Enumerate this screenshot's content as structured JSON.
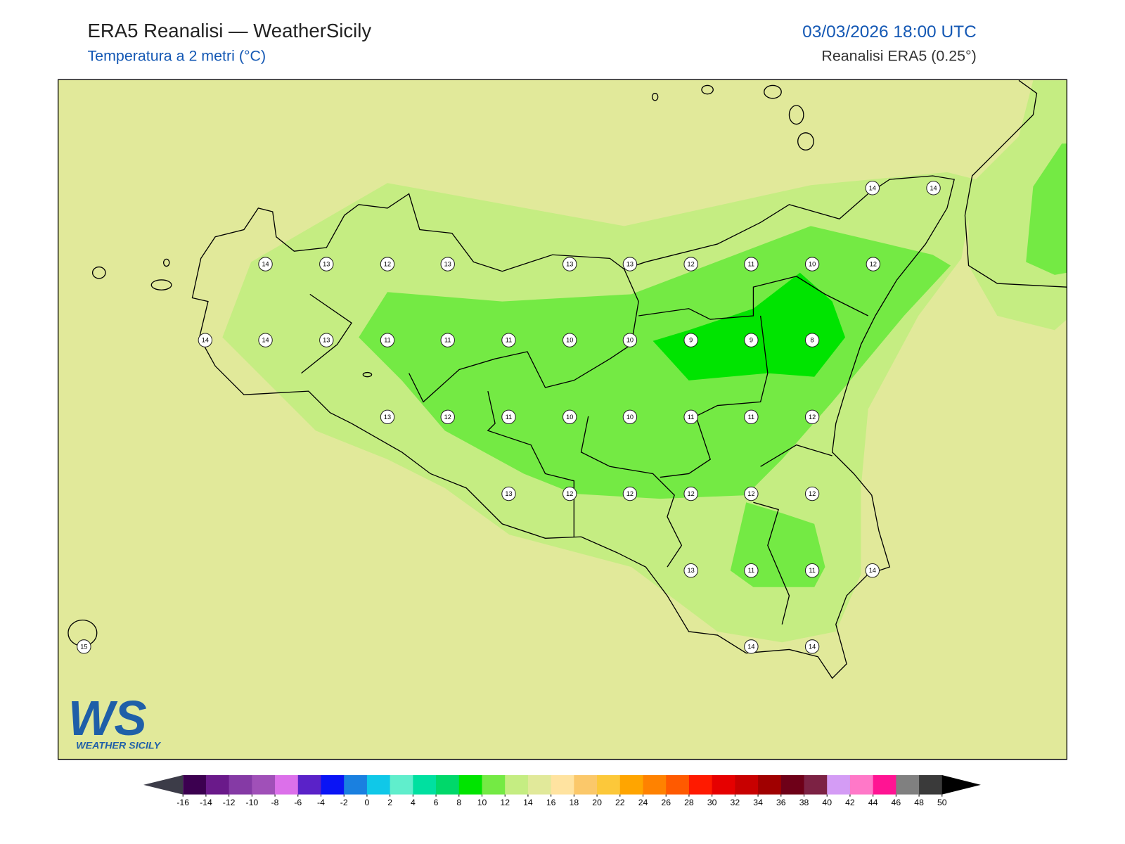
{
  "header": {
    "title": "ERA5 Reanalisi — WeatherSicily",
    "subtitle": "Temperatura a 2 metri (°C)",
    "datetime": "03/03/2026 18:00 UTC",
    "source": "Reanalisi ERA5 (0.25°)"
  },
  "map": {
    "stations": [
      14,
      14,
      14,
      13,
      12,
      13,
      13,
      13,
      12,
      11,
      10,
      12,
      14,
      14,
      13,
      11,
      11,
      11,
      10,
      10,
      9,
      9,
      8,
      13,
      12,
      11,
      10,
      10,
      11,
      11,
      12,
      13,
      12,
      12,
      12,
      12,
      12,
      13,
      11,
      11,
      14,
      15,
      14,
      14
    ]
  },
  "logo": {
    "mark": "WS",
    "text": "WEATHER SICILY"
  },
  "colorbar": {
    "ticks": [
      -16,
      -14,
      -12,
      -10,
      -8,
      -6,
      -4,
      -2,
      0,
      2,
      4,
      6,
      8,
      10,
      12,
      14,
      16,
      18,
      20,
      22,
      24,
      26,
      28,
      30,
      32,
      34,
      36,
      38,
      40,
      42,
      44,
      46,
      48,
      50
    ],
    "colors": [
      "#3c0050",
      "#6a1a8a",
      "#853aa5",
      "#a050b8",
      "#dc70ea",
      "#5a22c8",
      "#0a14f5",
      "#1a80e0",
      "#10c8e8",
      "#60eecc",
      "#00e0a0",
      "#00d86a",
      "#00e400",
      "#74ea44",
      "#c5ed82",
      "#e1e99a",
      "#ffe3a0",
      "#fbc86a",
      "#fcc83a",
      "#ffa500",
      "#ff8200",
      "#ff5a00",
      "#ff1a00",
      "#e60000",
      "#c80000",
      "#a00000",
      "#6e0018",
      "#7c2244",
      "#d49cf5",
      "#ff78c8",
      "#ff1493",
      "#808080",
      "#3a3a3a"
    ],
    "under_color": "#3c3c48",
    "over_color": "#000000"
  }
}
